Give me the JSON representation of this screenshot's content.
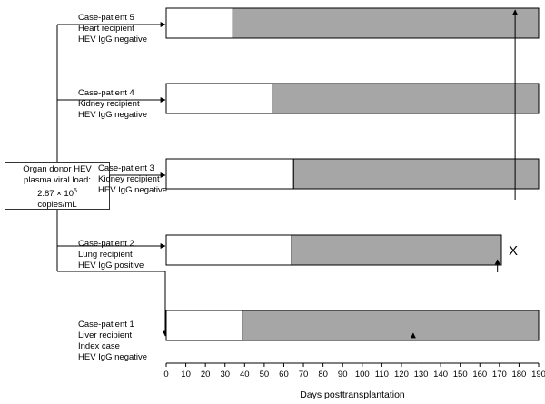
{
  "donor": {
    "line1": "Organ donor HEV",
    "line2": "plasma viral load:",
    "line3_base": "2.87 × 10",
    "line3_exp": "5",
    "line4": "copies/mL"
  },
  "patients": [
    {
      "title": "Case-patient 5",
      "lines": [
        "Heart recipient",
        "HEV IgG negative"
      ]
    },
    {
      "title": "Case-patient 4",
      "lines": [
        "Kidney recipient",
        "HEV IgG negative"
      ]
    },
    {
      "title": "Case-patient 3",
      "lines": [
        "Kidney recipient",
        "HEV IgG negative"
      ]
    },
    {
      "title": "Case-patient 2",
      "lines": [
        "Lung recipient",
        "HEV IgG positive"
      ]
    },
    {
      "title": "Case-patient 1",
      "lines": [
        "Liver recipient",
        "Index case",
        "HEV IgG negative"
      ]
    }
  ],
  "death_marker": "X",
  "colors": {
    "infected_fill": "#a6a6a6",
    "outline": "#000000"
  },
  "chart_data": {
    "type": "bar",
    "orientation": "horizontal-timeline",
    "xlabel": "Days posttransplantation",
    "xlim": [
      0,
      190
    ],
    "x_ticks": [
      0,
      10,
      20,
      30,
      40,
      50,
      60,
      70,
      80,
      90,
      100,
      110,
      120,
      130,
      140,
      150,
      160,
      170,
      180,
      190
    ],
    "series": [
      {
        "name": "Case-patient 5",
        "negative_until": 34,
        "positive_until": 190
      },
      {
        "name": "Case-patient 4",
        "negative_until": 54,
        "positive_until": 190
      },
      {
        "name": "Case-patient 3",
        "negative_until": 65,
        "positive_until": 190
      },
      {
        "name": "Case-patient 2",
        "negative_until": 64,
        "positive_until": 171,
        "died": true
      },
      {
        "name": "Case-patient 1",
        "negative_until": 39,
        "positive_until": 190
      }
    ],
    "arrows": [
      {
        "from_series": "Case-patient 3",
        "to_series": "Case-patient 5",
        "day": 178
      },
      {
        "series": "Case-patient 2",
        "day": 169
      },
      {
        "series": "Case-patient 1",
        "day": 126
      }
    ]
  }
}
